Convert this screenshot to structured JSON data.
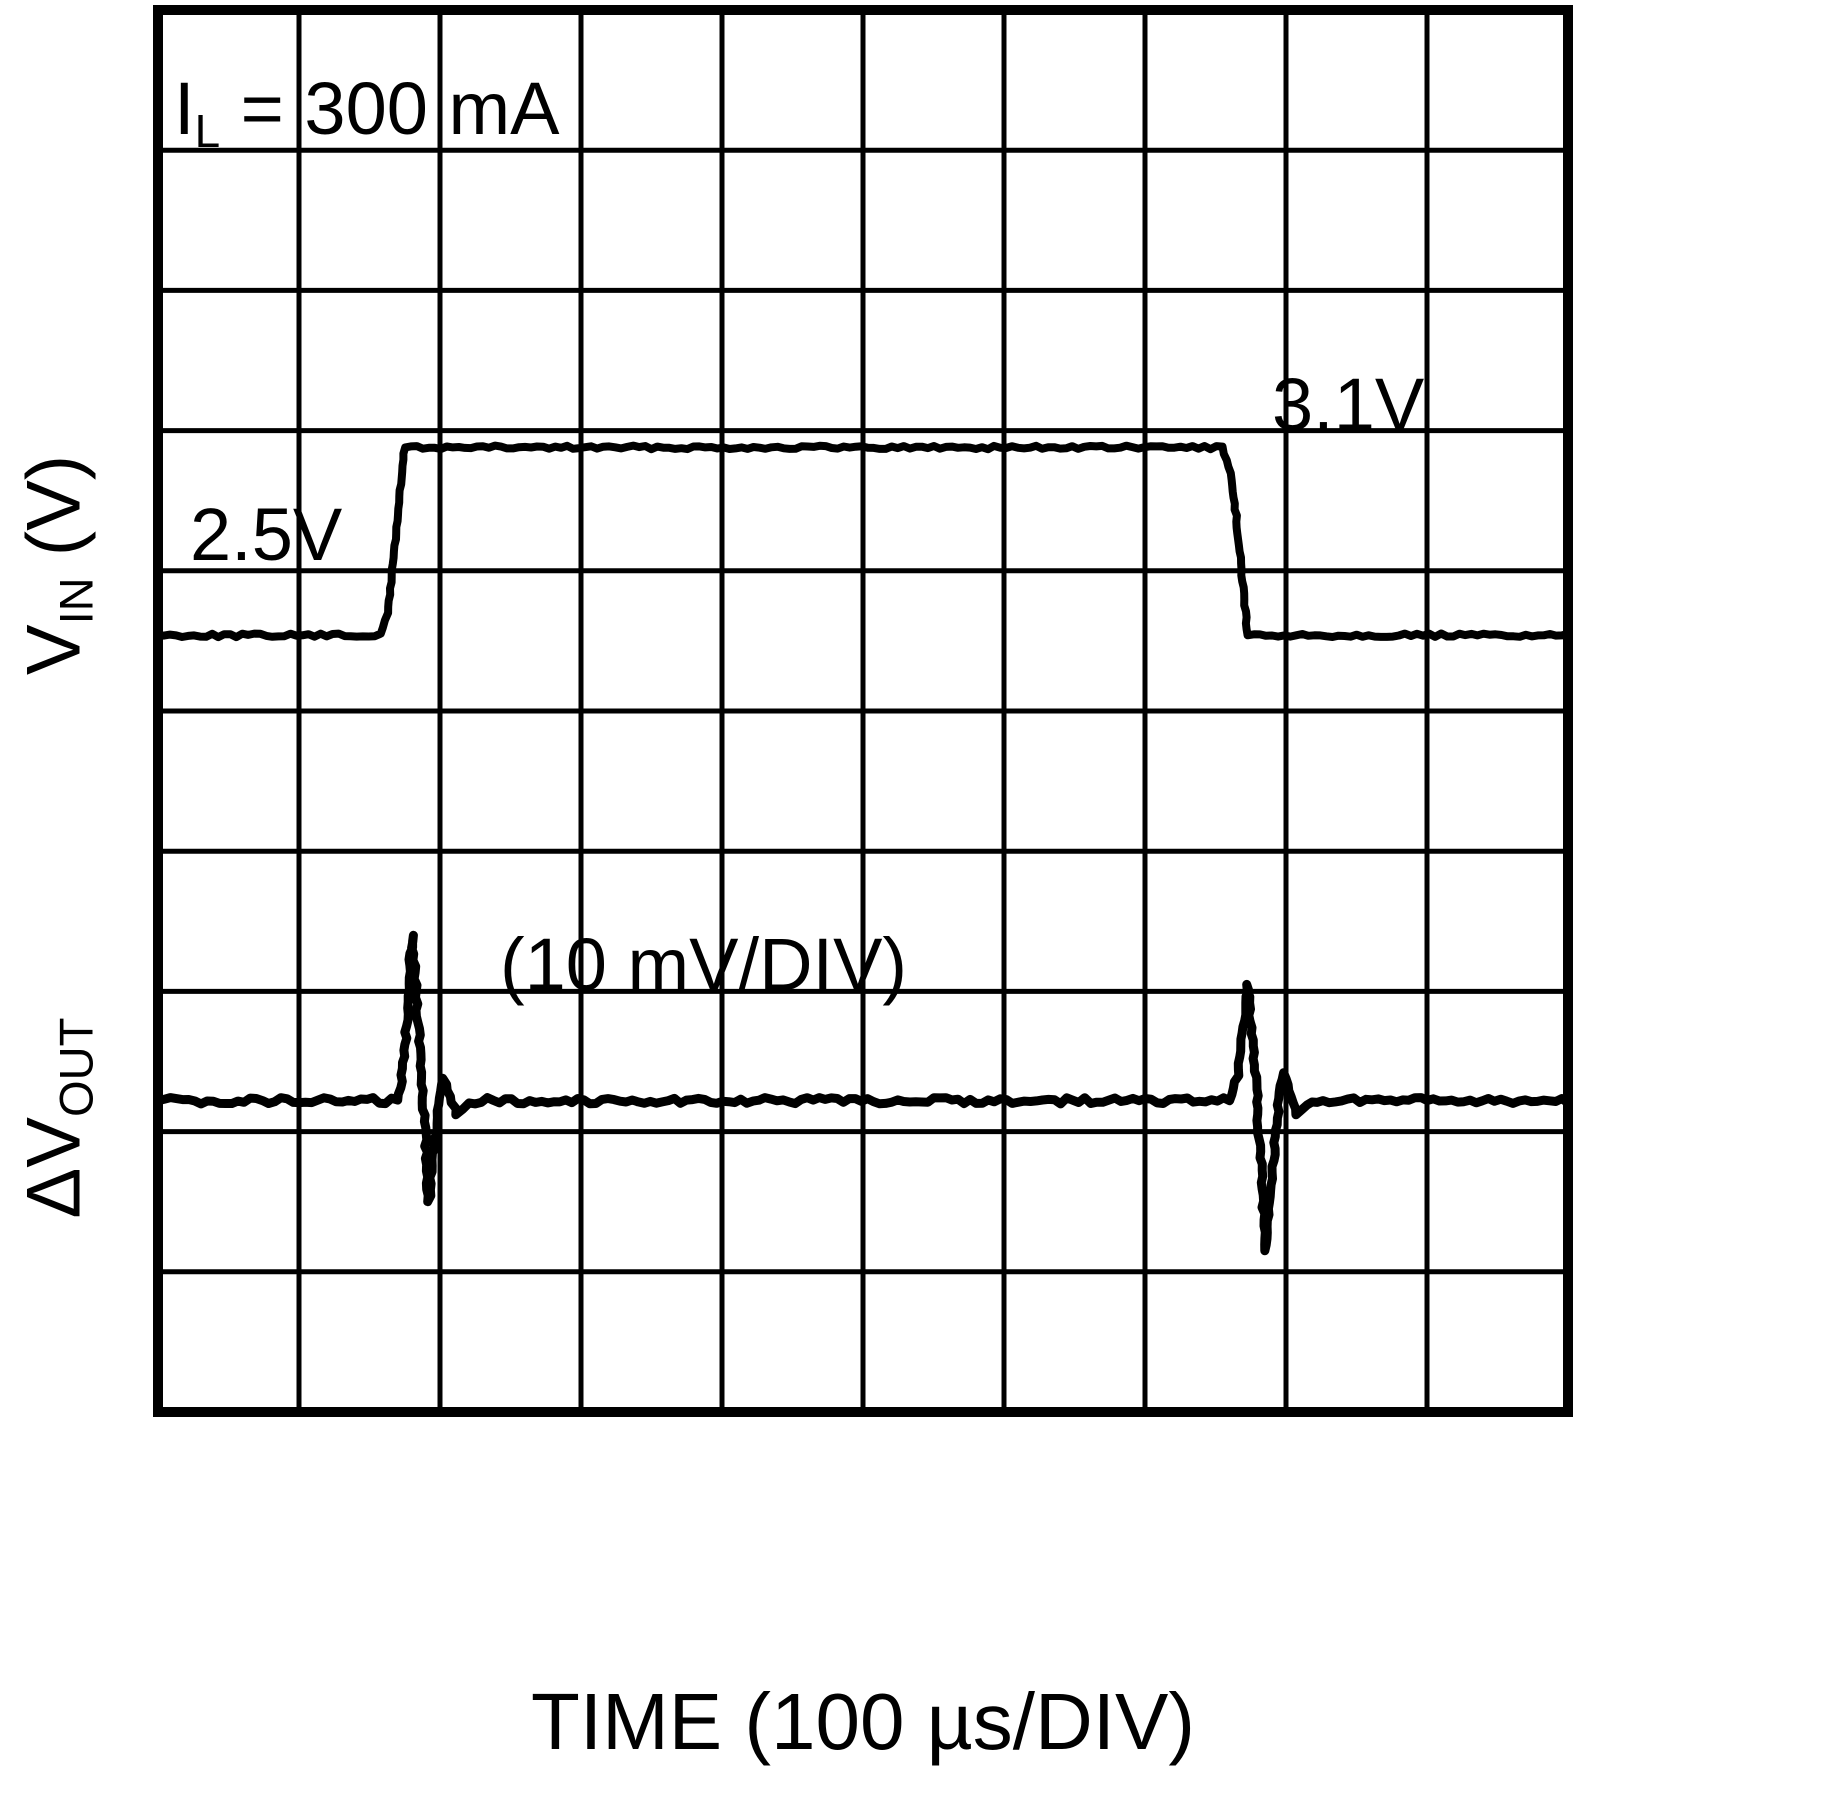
{
  "figure": {
    "annotations": {
      "load_current": {
        "base": "I",
        "sub": "L",
        "rest": " = 300 mA"
      },
      "level_low": "2.5V",
      "level_high": "3.1V",
      "vout_scale": "(10 mV/DIV)"
    },
    "axes": {
      "y_top": {
        "base": "V",
        "sub": "IN",
        "rest": " (V)"
      },
      "y_bottom": {
        "base": "ΔV",
        "sub": "OUT",
        "rest": ""
      },
      "x": "TIME (100 µs/DIV)"
    }
  },
  "chart_data": {
    "type": "line",
    "title": "Line transient response oscilloscope capture",
    "xlabel": "TIME (100 µs/DIV)",
    "x_unit_per_div": "100 µs",
    "load_current": "300 mA",
    "grid": {
      "x_divisions": 10,
      "y_divisions": 10,
      "visible": true
    },
    "colors": {
      "trace": "#000000",
      "grid": "#000000",
      "background": "#ffffff"
    },
    "series": [
      {
        "name": "VIN",
        "units": "V",
        "description": "Input voltage step from 2.5V up to 3.1V and back down",
        "level_low_V": 2.5,
        "level_high_V": 3.1,
        "points_div": [
          [
            0,
            4.46
          ],
          [
            1.58,
            4.46
          ],
          [
            1.63,
            4.3
          ],
          [
            1.75,
            3.12
          ],
          [
            7.55,
            3.12
          ],
          [
            7.62,
            3.35
          ],
          [
            7.73,
            4.46
          ],
          [
            10,
            4.46
          ]
        ]
      },
      {
        "name": "ΔVOUT",
        "units": "10 mV/DIV",
        "description": "Output voltage deviation: positive/negative spikes at input edges, flat baseline otherwise",
        "points_div": [
          [
            0,
            7.78
          ],
          [
            1.7,
            7.78
          ],
          [
            1.74,
            7.55
          ],
          [
            1.8,
            6.6
          ],
          [
            1.86,
            7.4
          ],
          [
            1.92,
            8.5
          ],
          [
            1.98,
            7.9
          ],
          [
            2.03,
            7.62
          ],
          [
            2.12,
            7.88
          ],
          [
            2.25,
            7.78
          ],
          [
            7.6,
            7.78
          ],
          [
            7.66,
            7.6
          ],
          [
            7.73,
            6.95
          ],
          [
            7.79,
            7.7
          ],
          [
            7.86,
            8.85
          ],
          [
            7.93,
            7.95
          ],
          [
            7.98,
            7.58
          ],
          [
            8.08,
            7.88
          ],
          [
            8.22,
            7.78
          ],
          [
            10,
            7.78
          ]
        ]
      }
    ]
  }
}
